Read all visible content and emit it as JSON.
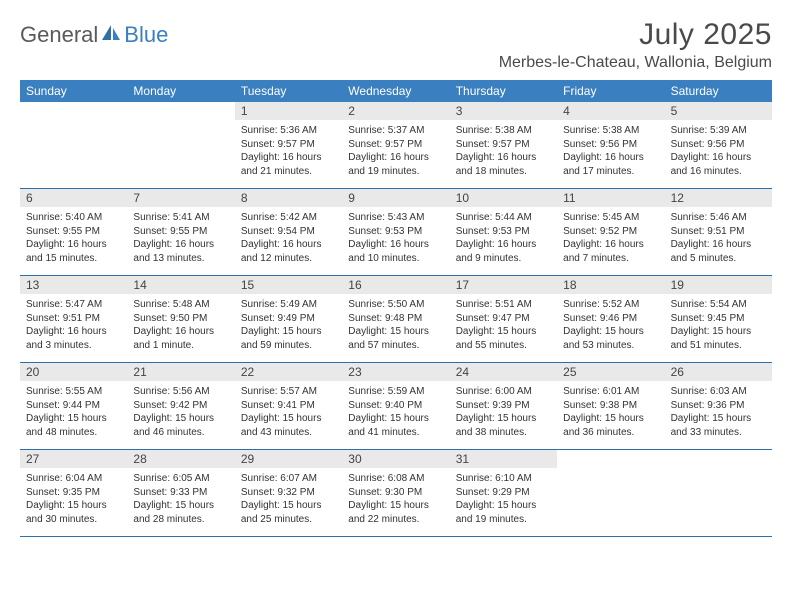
{
  "brand": {
    "part1": "General",
    "part2": "Blue"
  },
  "title": "July 2025",
  "location": "Merbes-le-Chateau, Wallonia, Belgium",
  "colors": {
    "header_bg": "#3a7fc0",
    "header_text": "#ffffff",
    "daynum_bg": "#e9e9e9",
    "border": "#2f6fa8",
    "text": "#333333",
    "title_text": "#4a4a4a",
    "logo_gray": "#5a5a5a",
    "logo_blue": "#3a7fc0"
  },
  "weekdays": [
    "Sunday",
    "Monday",
    "Tuesday",
    "Wednesday",
    "Thursday",
    "Friday",
    "Saturday"
  ],
  "weeks": [
    [
      {
        "num": "",
        "sunrise": "",
        "sunset": "",
        "daylight": ""
      },
      {
        "num": "",
        "sunrise": "",
        "sunset": "",
        "daylight": ""
      },
      {
        "num": "1",
        "sunrise": "Sunrise: 5:36 AM",
        "sunset": "Sunset: 9:57 PM",
        "daylight": "Daylight: 16 hours and 21 minutes."
      },
      {
        "num": "2",
        "sunrise": "Sunrise: 5:37 AM",
        "sunset": "Sunset: 9:57 PM",
        "daylight": "Daylight: 16 hours and 19 minutes."
      },
      {
        "num": "3",
        "sunrise": "Sunrise: 5:38 AM",
        "sunset": "Sunset: 9:57 PM",
        "daylight": "Daylight: 16 hours and 18 minutes."
      },
      {
        "num": "4",
        "sunrise": "Sunrise: 5:38 AM",
        "sunset": "Sunset: 9:56 PM",
        "daylight": "Daylight: 16 hours and 17 minutes."
      },
      {
        "num": "5",
        "sunrise": "Sunrise: 5:39 AM",
        "sunset": "Sunset: 9:56 PM",
        "daylight": "Daylight: 16 hours and 16 minutes."
      }
    ],
    [
      {
        "num": "6",
        "sunrise": "Sunrise: 5:40 AM",
        "sunset": "Sunset: 9:55 PM",
        "daylight": "Daylight: 16 hours and 15 minutes."
      },
      {
        "num": "7",
        "sunrise": "Sunrise: 5:41 AM",
        "sunset": "Sunset: 9:55 PM",
        "daylight": "Daylight: 16 hours and 13 minutes."
      },
      {
        "num": "8",
        "sunrise": "Sunrise: 5:42 AM",
        "sunset": "Sunset: 9:54 PM",
        "daylight": "Daylight: 16 hours and 12 minutes."
      },
      {
        "num": "9",
        "sunrise": "Sunrise: 5:43 AM",
        "sunset": "Sunset: 9:53 PM",
        "daylight": "Daylight: 16 hours and 10 minutes."
      },
      {
        "num": "10",
        "sunrise": "Sunrise: 5:44 AM",
        "sunset": "Sunset: 9:53 PM",
        "daylight": "Daylight: 16 hours and 9 minutes."
      },
      {
        "num": "11",
        "sunrise": "Sunrise: 5:45 AM",
        "sunset": "Sunset: 9:52 PM",
        "daylight": "Daylight: 16 hours and 7 minutes."
      },
      {
        "num": "12",
        "sunrise": "Sunrise: 5:46 AM",
        "sunset": "Sunset: 9:51 PM",
        "daylight": "Daylight: 16 hours and 5 minutes."
      }
    ],
    [
      {
        "num": "13",
        "sunrise": "Sunrise: 5:47 AM",
        "sunset": "Sunset: 9:51 PM",
        "daylight": "Daylight: 16 hours and 3 minutes."
      },
      {
        "num": "14",
        "sunrise": "Sunrise: 5:48 AM",
        "sunset": "Sunset: 9:50 PM",
        "daylight": "Daylight: 16 hours and 1 minute."
      },
      {
        "num": "15",
        "sunrise": "Sunrise: 5:49 AM",
        "sunset": "Sunset: 9:49 PM",
        "daylight": "Daylight: 15 hours and 59 minutes."
      },
      {
        "num": "16",
        "sunrise": "Sunrise: 5:50 AM",
        "sunset": "Sunset: 9:48 PM",
        "daylight": "Daylight: 15 hours and 57 minutes."
      },
      {
        "num": "17",
        "sunrise": "Sunrise: 5:51 AM",
        "sunset": "Sunset: 9:47 PM",
        "daylight": "Daylight: 15 hours and 55 minutes."
      },
      {
        "num": "18",
        "sunrise": "Sunrise: 5:52 AM",
        "sunset": "Sunset: 9:46 PM",
        "daylight": "Daylight: 15 hours and 53 minutes."
      },
      {
        "num": "19",
        "sunrise": "Sunrise: 5:54 AM",
        "sunset": "Sunset: 9:45 PM",
        "daylight": "Daylight: 15 hours and 51 minutes."
      }
    ],
    [
      {
        "num": "20",
        "sunrise": "Sunrise: 5:55 AM",
        "sunset": "Sunset: 9:44 PM",
        "daylight": "Daylight: 15 hours and 48 minutes."
      },
      {
        "num": "21",
        "sunrise": "Sunrise: 5:56 AM",
        "sunset": "Sunset: 9:42 PM",
        "daylight": "Daylight: 15 hours and 46 minutes."
      },
      {
        "num": "22",
        "sunrise": "Sunrise: 5:57 AM",
        "sunset": "Sunset: 9:41 PM",
        "daylight": "Daylight: 15 hours and 43 minutes."
      },
      {
        "num": "23",
        "sunrise": "Sunrise: 5:59 AM",
        "sunset": "Sunset: 9:40 PM",
        "daylight": "Daylight: 15 hours and 41 minutes."
      },
      {
        "num": "24",
        "sunrise": "Sunrise: 6:00 AM",
        "sunset": "Sunset: 9:39 PM",
        "daylight": "Daylight: 15 hours and 38 minutes."
      },
      {
        "num": "25",
        "sunrise": "Sunrise: 6:01 AM",
        "sunset": "Sunset: 9:38 PM",
        "daylight": "Daylight: 15 hours and 36 minutes."
      },
      {
        "num": "26",
        "sunrise": "Sunrise: 6:03 AM",
        "sunset": "Sunset: 9:36 PM",
        "daylight": "Daylight: 15 hours and 33 minutes."
      }
    ],
    [
      {
        "num": "27",
        "sunrise": "Sunrise: 6:04 AM",
        "sunset": "Sunset: 9:35 PM",
        "daylight": "Daylight: 15 hours and 30 minutes."
      },
      {
        "num": "28",
        "sunrise": "Sunrise: 6:05 AM",
        "sunset": "Sunset: 9:33 PM",
        "daylight": "Daylight: 15 hours and 28 minutes."
      },
      {
        "num": "29",
        "sunrise": "Sunrise: 6:07 AM",
        "sunset": "Sunset: 9:32 PM",
        "daylight": "Daylight: 15 hours and 25 minutes."
      },
      {
        "num": "30",
        "sunrise": "Sunrise: 6:08 AM",
        "sunset": "Sunset: 9:30 PM",
        "daylight": "Daylight: 15 hours and 22 minutes."
      },
      {
        "num": "31",
        "sunrise": "Sunrise: 6:10 AM",
        "sunset": "Sunset: 9:29 PM",
        "daylight": "Daylight: 15 hours and 19 minutes."
      },
      {
        "num": "",
        "sunrise": "",
        "sunset": "",
        "daylight": ""
      },
      {
        "num": "",
        "sunrise": "",
        "sunset": "",
        "daylight": ""
      }
    ]
  ]
}
